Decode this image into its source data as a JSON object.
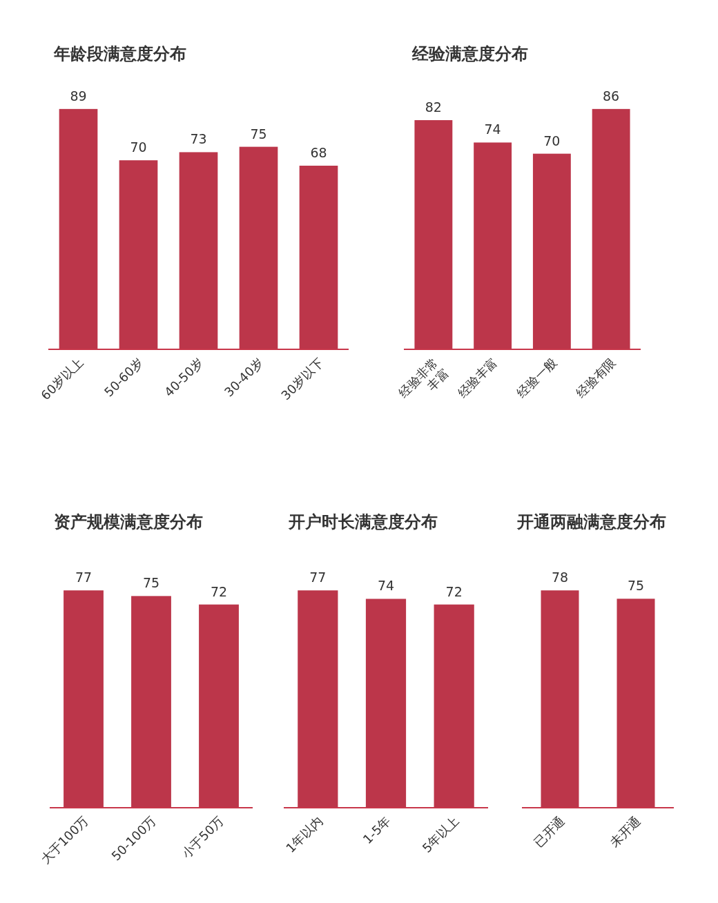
{
  "chart_data": [
    {
      "type": "bar",
      "title": "年龄段满意度分布",
      "categories": [
        "60岁以上",
        "50-60岁",
        "40-50岁",
        "30-40岁",
        "30岁以下"
      ],
      "values": [
        89,
        70,
        73,
        75,
        68
      ],
      "color": "#bc364a",
      "data_labels": true
    },
    {
      "type": "bar",
      "title": "经验满意度分布",
      "categories": [
        "经验非常丰富",
        "经验丰富",
        "经验一般",
        "经验有限"
      ],
      "values": [
        82,
        74,
        70,
        86
      ],
      "color": "#bc364a",
      "data_labels": true
    },
    {
      "type": "bar",
      "title": "资产规模满意度分布",
      "categories": [
        "大于100万",
        "50-100万",
        "小于50万"
      ],
      "values": [
        77,
        75,
        72
      ],
      "color": "#bc364a",
      "data_labels": true
    },
    {
      "type": "bar",
      "title": "开户时长满意度分布",
      "categories": [
        "1年以内",
        "1-5年",
        "5年以上"
      ],
      "values": [
        77,
        74,
        72
      ],
      "color": "#bc364a",
      "data_labels": true
    },
    {
      "type": "bar",
      "title": "开通两融满意度分布",
      "categories": [
        "已开通",
        "未开通"
      ],
      "values": [
        78,
        75
      ],
      "color": "#bc364a",
      "data_labels": true
    }
  ]
}
